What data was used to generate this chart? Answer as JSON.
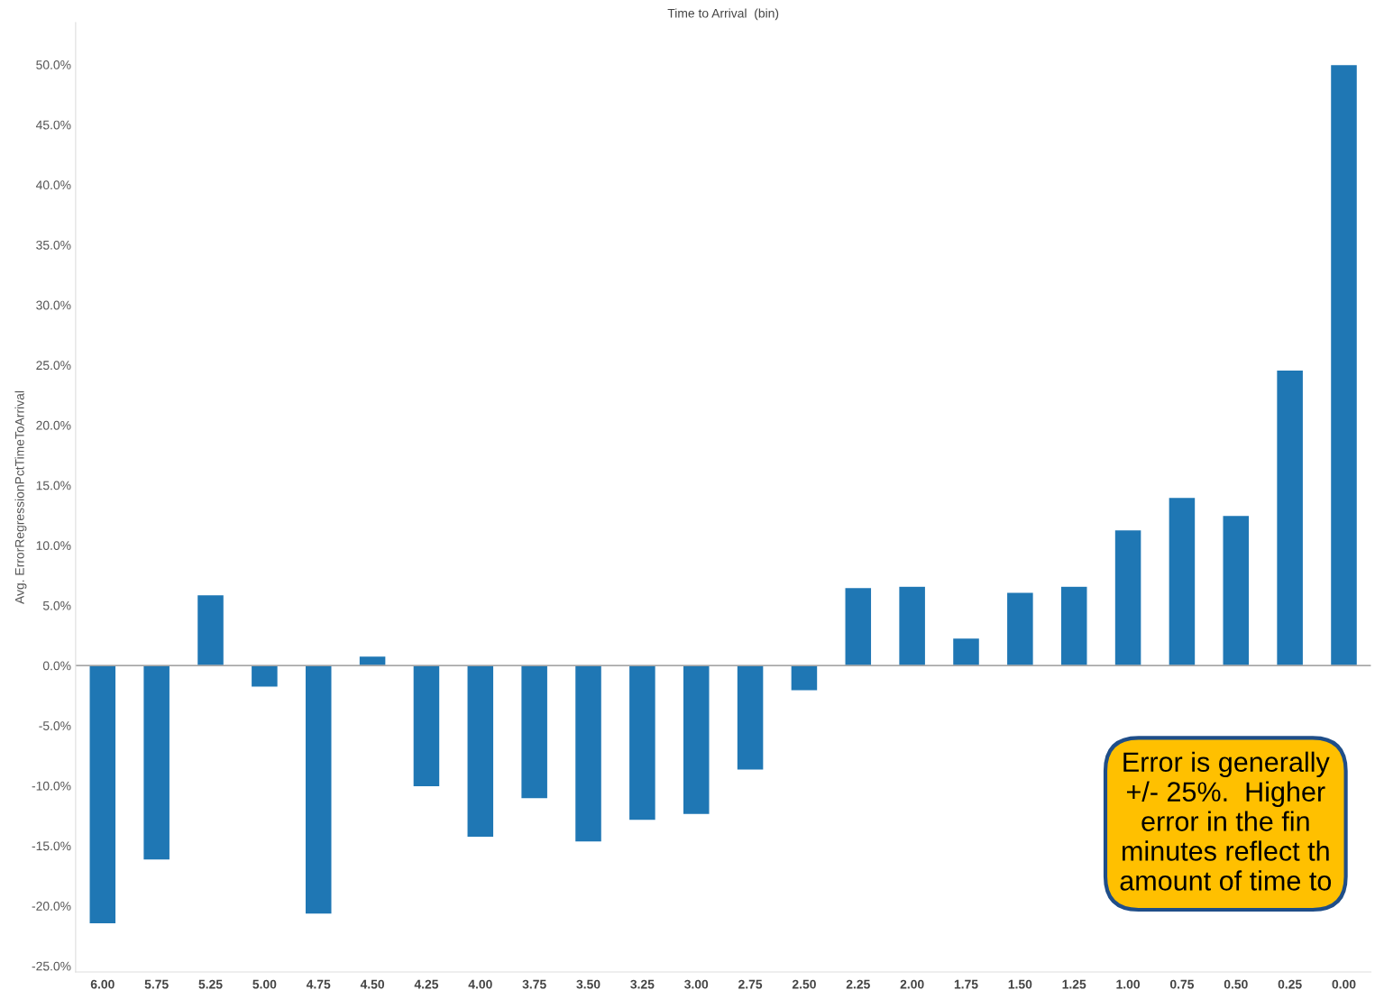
{
  "chart_data": {
    "type": "bar",
    "title": "Time to Arrival  (bin)",
    "ylabel": "Avg. ErrorRegressionPctTimeToArrival",
    "categories": [
      "6.00",
      "5.75",
      "5.25",
      "5.00",
      "4.75",
      "4.50",
      "4.25",
      "4.00",
      "3.75",
      "3.50",
      "3.25",
      "3.00",
      "2.75",
      "2.50",
      "2.25",
      "2.00",
      "1.75",
      "1.50",
      "1.25",
      "1.00",
      "0.75",
      "0.50",
      "0.25",
      "0.00"
    ],
    "values": [
      -21.5,
      -16.2,
      5.9,
      -1.8,
      -20.7,
      0.8,
      -10.1,
      -14.3,
      -11.1,
      -14.7,
      -12.9,
      -12.4,
      -8.7,
      -2.1,
      6.5,
      6.6,
      2.3,
      6.1,
      6.6,
      11.3,
      14.0,
      12.5,
      24.6,
      50.0
    ],
    "color": "#1f77b4",
    "ylim": [
      -25.5,
      53.5
    ],
    "yticks": [
      {
        "value": -25,
        "label": "-25.0%"
      },
      {
        "value": -20,
        "label": "-20.0%"
      },
      {
        "value": -15,
        "label": "-15.0%"
      },
      {
        "value": -10,
        "label": "-10.0%"
      },
      {
        "value": -5,
        "label": "-5.0%"
      },
      {
        "value": 0,
        "label": "0.0%"
      },
      {
        "value": 5,
        "label": "5.0%"
      },
      {
        "value": 10,
        "label": "10.0%"
      },
      {
        "value": 15,
        "label": "15.0%"
      },
      {
        "value": 20,
        "label": "20.0%"
      },
      {
        "value": 25,
        "label": "25.0%"
      },
      {
        "value": 30,
        "label": "30.0%"
      },
      {
        "value": 35,
        "label": "35.0%"
      },
      {
        "value": 40,
        "label": "40.0%"
      },
      {
        "value": 45,
        "label": "45.0%"
      },
      {
        "value": 50,
        "label": "50.0%"
      }
    ],
    "ref_lines": [
      {
        "axis": "y",
        "value": 0,
        "color": "#888888"
      }
    ],
    "grid": false,
    "annotations": [
      "Error is generally\n+/- 25%.  Higher\nerror in the fin\nminutes reflect th\namount of time to"
    ]
  }
}
